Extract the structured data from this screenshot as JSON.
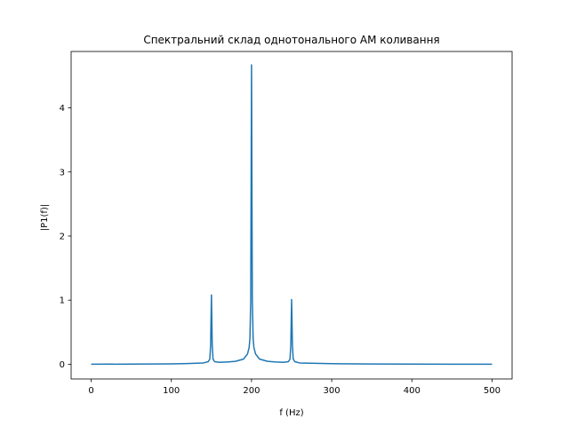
{
  "chart_data": {
    "type": "line",
    "title": "Спектральний склад однотонального АМ коливання",
    "xlabel": "f (Hz)",
    "ylabel": "|P1(f)|",
    "xlim": [
      -25,
      525
    ],
    "ylim": [
      -0.23,
      4.88
    ],
    "xticks": [
      0,
      100,
      200,
      300,
      400,
      500
    ],
    "yticks": [
      0,
      1,
      2,
      3,
      4
    ],
    "grid": false,
    "color": "#1f77b4",
    "series": [
      {
        "x": [
          0,
          50,
          100,
          120,
          140,
          146,
          148,
          149,
          150,
          151,
          152,
          154,
          160,
          170,
          180,
          190,
          195,
          197,
          198,
          199,
          199.5,
          200,
          200.5,
          201,
          202,
          203,
          205,
          210,
          220,
          230,
          240,
          246,
          248,
          249,
          250,
          251,
          252,
          254,
          260,
          300,
          350,
          400,
          450,
          500
        ],
        "y": [
          0.0,
          0.002,
          0.005,
          0.01,
          0.02,
          0.04,
          0.08,
          0.3,
          1.08,
          0.3,
          0.08,
          0.04,
          0.03,
          0.035,
          0.045,
          0.08,
          0.16,
          0.26,
          0.4,
          1.0,
          2.8,
          4.67,
          2.8,
          1.0,
          0.4,
          0.26,
          0.16,
          0.08,
          0.045,
          0.035,
          0.03,
          0.04,
          0.08,
          0.3,
          1.01,
          0.3,
          0.08,
          0.04,
          0.02,
          0.008,
          0.004,
          0.002,
          0.001,
          0.0
        ]
      }
    ]
  }
}
